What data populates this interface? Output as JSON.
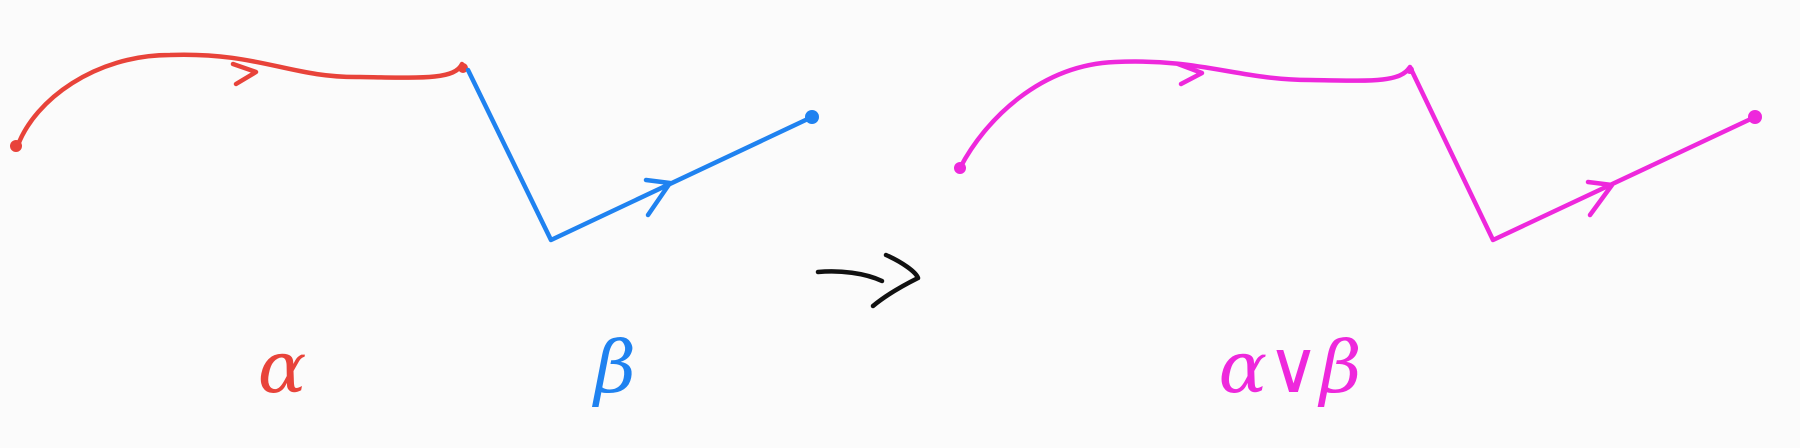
{
  "colors": {
    "alpha": "#e8433a",
    "beta": "#1f82f0",
    "concat": "#ee28dc",
    "arrow": "#111111",
    "background": "#fbfbfb"
  },
  "left_panel": {
    "alpha_label": "α",
    "beta_label": "β"
  },
  "transform_arrow": {
    "icon": "right-arrow-icon"
  },
  "right_panel": {
    "concat_label": "α∨β"
  }
}
